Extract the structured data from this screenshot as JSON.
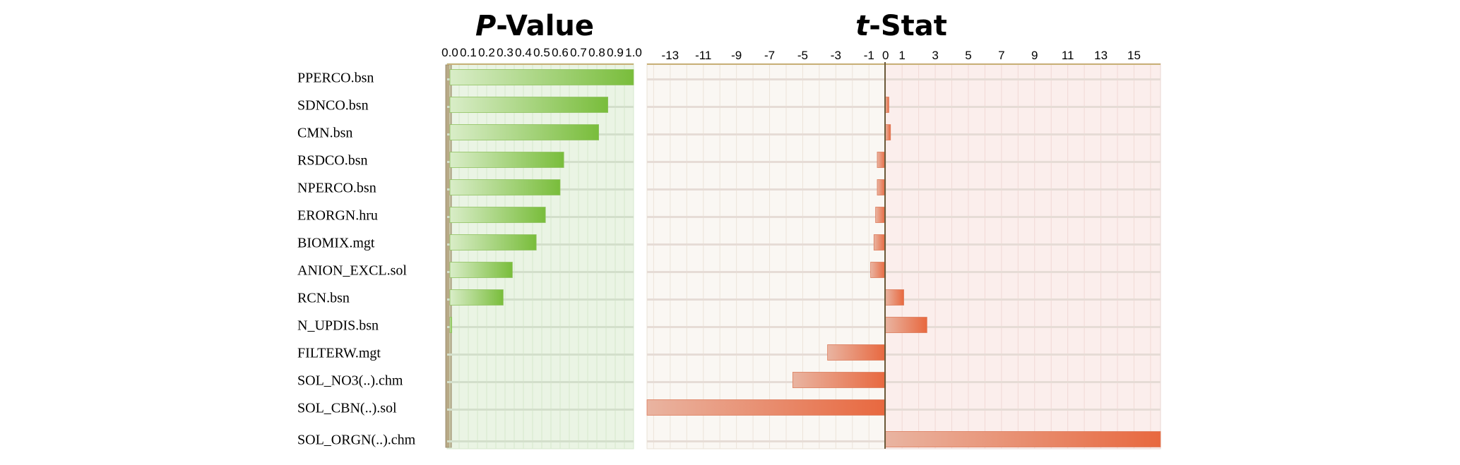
{
  "parameters": [
    "PPERCO.bsn",
    "SDNCO.bsn",
    "CMN.bsn",
    "RSDCO.bsn",
    "NPERCO.bsn",
    "ERORGN.hru",
    "BIOMIX.mgt",
    "ANION_EXCL.sol",
    "RCN.bsn",
    "N_UPDIS.bsn",
    "FILTERW.mgt",
    "SOL_NO3(..).chm",
    "SOL_CBN(..).sol",
    "SOL_ORGN(..).chm"
  ],
  "chart_data": [
    {
      "type": "bar",
      "orientation": "horizontal",
      "title_prefix": "P",
      "title_suffix": "-Value",
      "xlabel": "",
      "ylabel": "",
      "xlim": [
        0,
        1
      ],
      "ticks": [
        "0.0",
        "0.1",
        "0.2",
        "0.3",
        "0.4",
        "0.5",
        "0.6",
        "0.7",
        "0.8",
        "0.9",
        "1.0"
      ],
      "values": [
        1.0,
        0.86,
        0.81,
        0.62,
        0.6,
        0.52,
        0.47,
        0.34,
        0.29,
        0.01,
        0.0,
        0.0,
        0.0,
        0.0
      ],
      "bar_color": "#7fc241",
      "background": "#e9f4e3",
      "grid": true
    },
    {
      "type": "bar",
      "orientation": "horizontal",
      "title_prefix": "t",
      "title_suffix": "-Stat",
      "xlabel": "",
      "ylabel": "",
      "xlim": [
        -14.4,
        16.6
      ],
      "ticks": [
        "-13",
        "-11",
        "-9",
        "-7",
        "-5",
        "-3",
        "-1",
        "0",
        "1",
        "3",
        "5",
        "7",
        "9",
        "11",
        "13",
        "15"
      ],
      "values": [
        0.0,
        0.2,
        0.3,
        -0.5,
        -0.5,
        -0.6,
        -0.7,
        -0.9,
        1.1,
        2.5,
        -3.5,
        -5.6,
        -14.4,
        16.6
      ],
      "bar_color": "#e8744e",
      "background_negative": "#faf7f3",
      "background_positive": "#fbeceb",
      "grid": true
    }
  ]
}
